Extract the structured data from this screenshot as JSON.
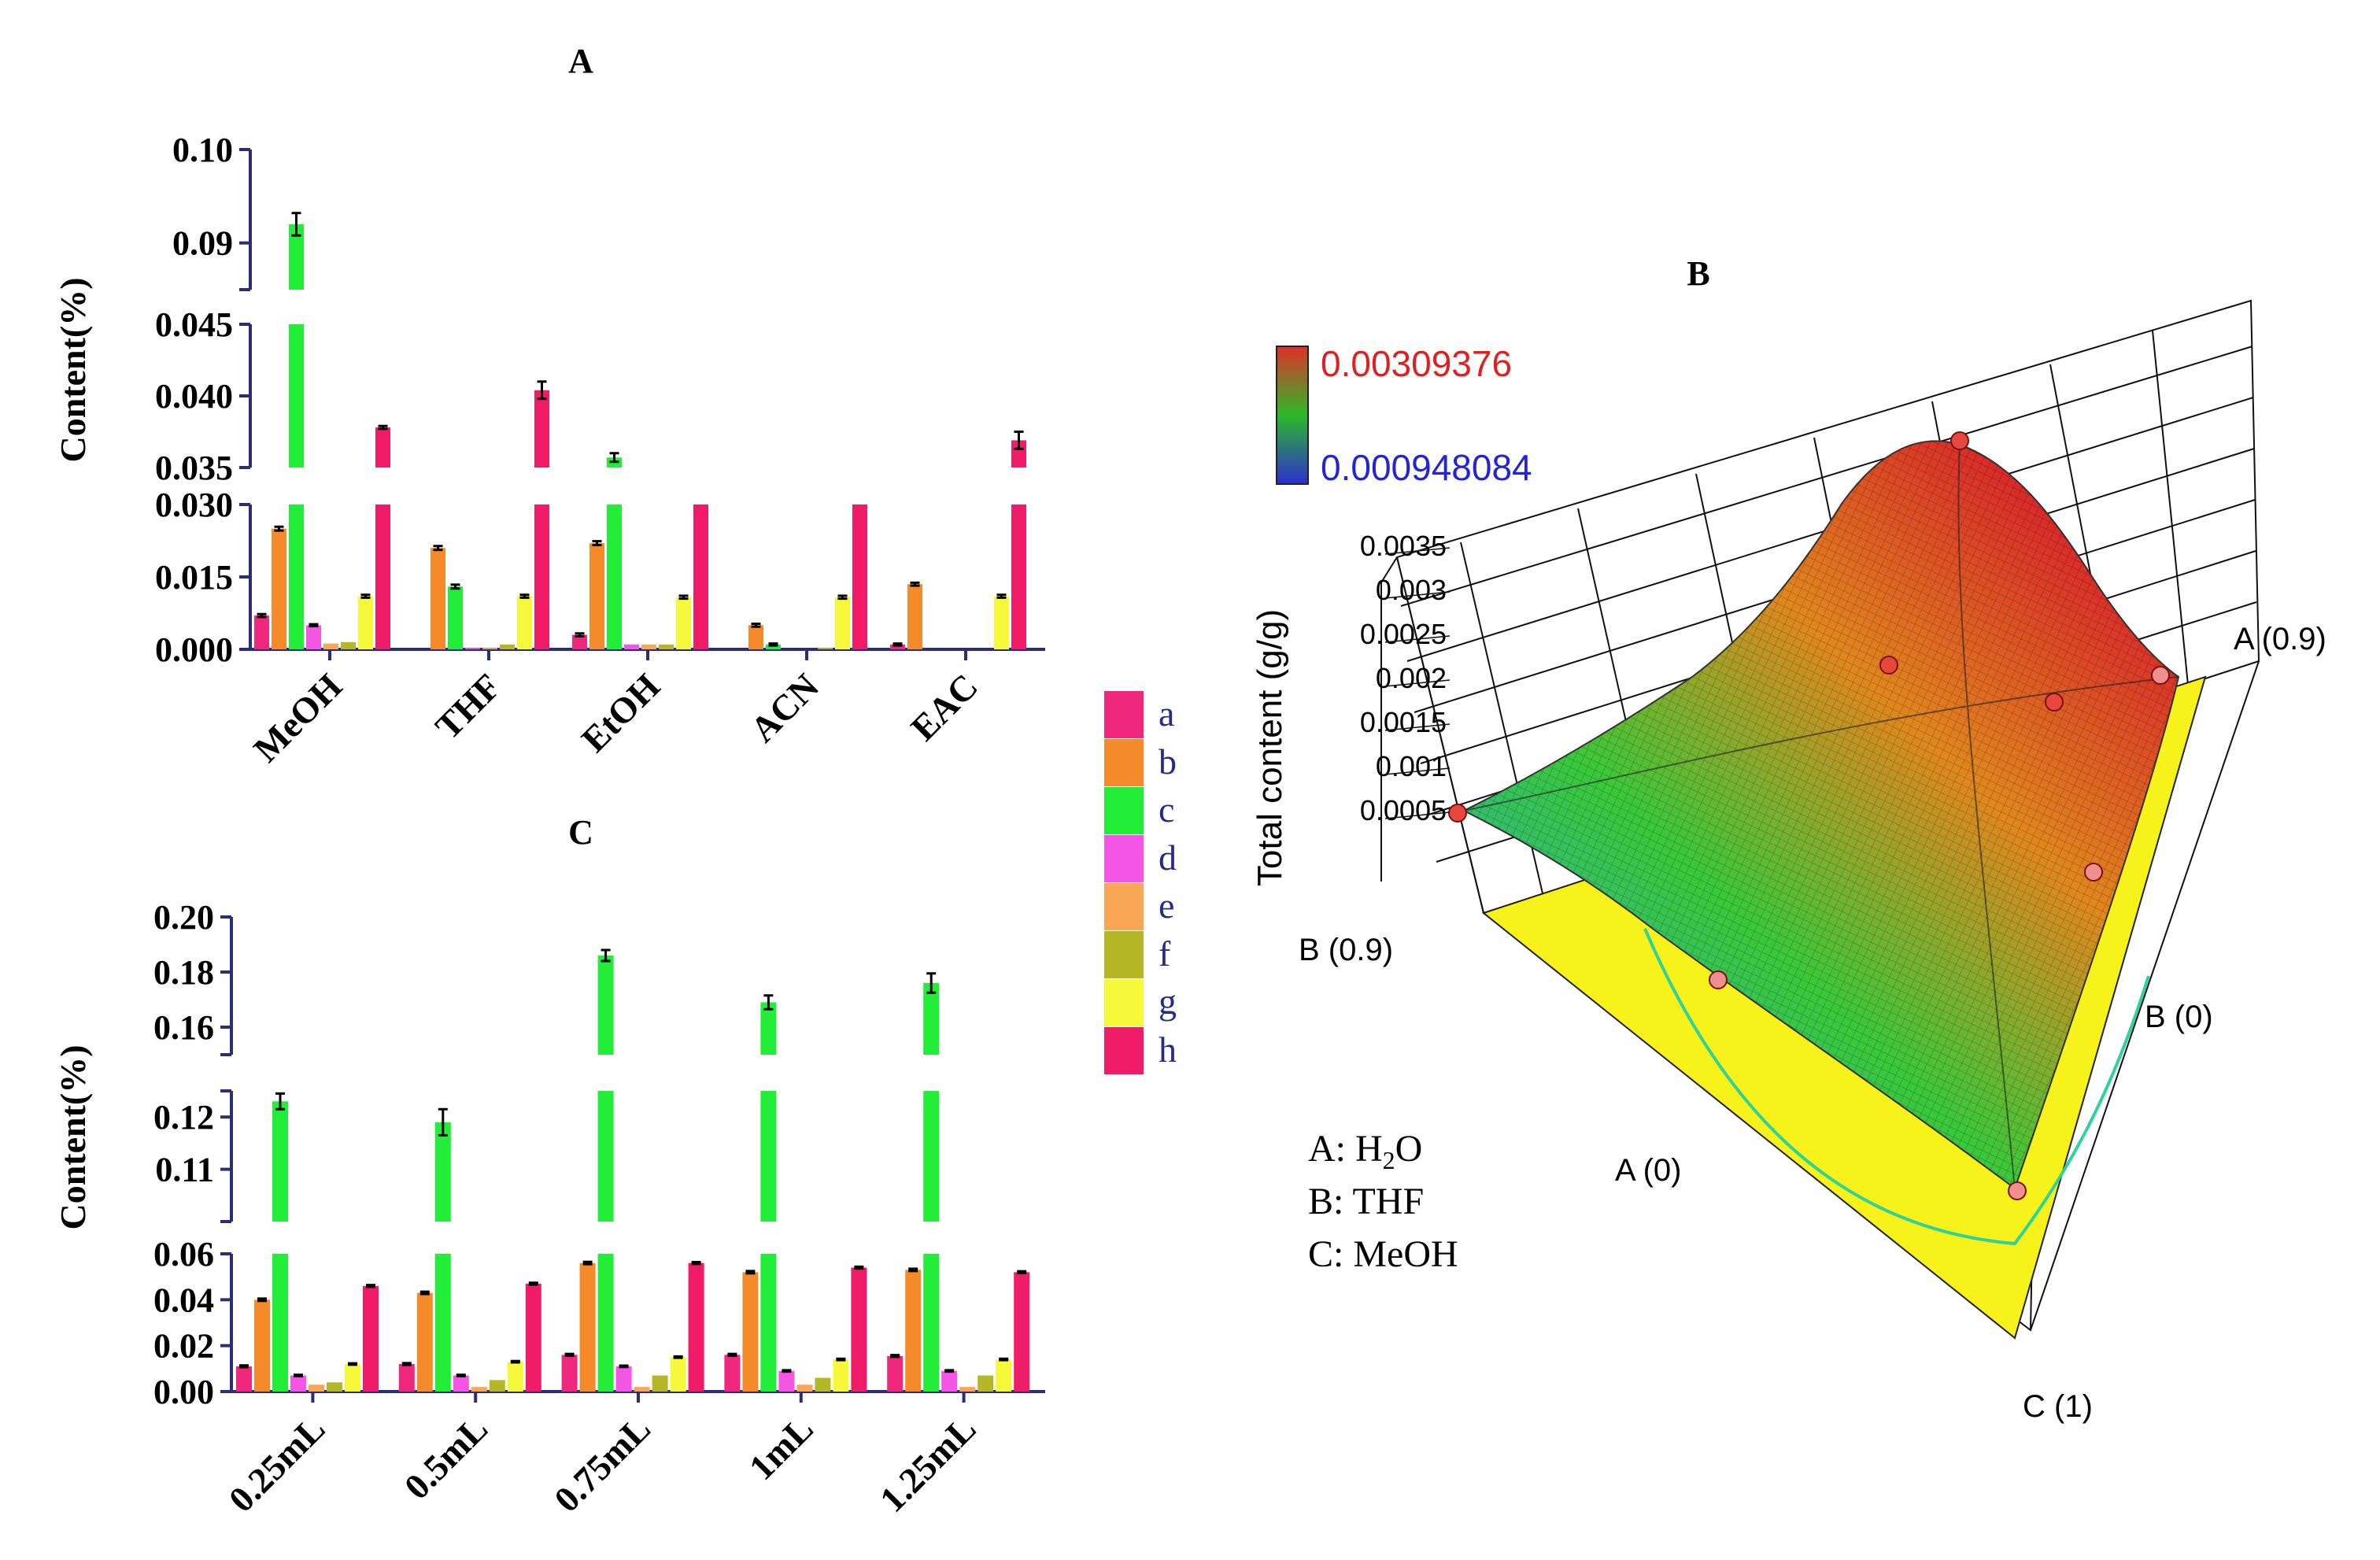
{
  "chart_data": [
    {
      "panel": "A",
      "type": "bar",
      "title": "A",
      "ylabel": "Content(%)",
      "xlabel": "",
      "categories": [
        "MeOH",
        "THF",
        "EtOH",
        "ACN",
        "EAC"
      ],
      "y_segments": [
        {
          "range": [
            0.0,
            0.03
          ],
          "ticks": [
            "0.000",
            "0.015",
            "0.030"
          ],
          "tick_values": [
            0.0,
            0.015,
            0.03
          ]
        },
        {
          "range": [
            0.035,
            0.045
          ],
          "ticks": [
            "0.035",
            "0.040",
            "0.045"
          ],
          "tick_values": [
            0.035,
            0.04,
            0.045
          ]
        },
        {
          "range": [
            0.085,
            0.1
          ],
          "ticks": [
            "0.09",
            "0.10"
          ],
          "tick_values": [
            0.09,
            0.1
          ]
        }
      ],
      "series": [
        {
          "name": "a",
          "values": [
            0.007,
            0.0,
            0.003,
            0.0,
            0.001
          ],
          "errors": [
            0.0003,
            0.0,
            0.0003,
            0.0,
            0.0002
          ]
        },
        {
          "name": "b",
          "values": [
            0.025,
            0.021,
            0.022,
            0.005,
            0.0135
          ],
          "errors": [
            0.0004,
            0.0004,
            0.0004,
            0.0003,
            0.0003
          ]
        },
        {
          "name": "c",
          "values": [
            0.092,
            0.013,
            0.0357,
            0.001,
            0.0
          ],
          "errors": [
            0.0012,
            0.0004,
            0.0003,
            0.0002,
            0.0
          ]
        },
        {
          "name": "d",
          "values": [
            0.005,
            0.0003,
            0.001,
            0.0,
            0.0
          ],
          "errors": [
            0.0002,
            0.0,
            0.0,
            0.0,
            0.0
          ]
        },
        {
          "name": "e",
          "values": [
            0.0012,
            0.0003,
            0.001,
            0.0,
            0.0
          ],
          "errors": [
            0.0,
            0.0,
            0.0,
            0.0,
            0.0
          ]
        },
        {
          "name": "f",
          "values": [
            0.0015,
            0.001,
            0.001,
            0.0003,
            0.0
          ],
          "errors": [
            0.0,
            0.0,
            0.0,
            0.0,
            0.0
          ]
        },
        {
          "name": "g",
          "values": [
            0.011,
            0.011,
            0.0108,
            0.0108,
            0.011
          ],
          "errors": [
            0.0003,
            0.0003,
            0.0003,
            0.0003,
            0.0003
          ]
        },
        {
          "name": "h",
          "values": [
            0.0378,
            0.0404,
            0.03,
            0.03,
            0.0369
          ],
          "errors": [
            0.0001,
            0.0006,
            0.0,
            0.0,
            0.0006
          ]
        }
      ]
    },
    {
      "panel": "C",
      "type": "bar",
      "title": "C",
      "ylabel": "Content(%)",
      "xlabel": "",
      "categories": [
        "0.25mL",
        "0.5mL",
        "0.75mL",
        "1mL",
        "1.25mL"
      ],
      "y_segments": [
        {
          "range": [
            0.0,
            0.06
          ],
          "ticks": [
            "0.00",
            "0.02",
            "0.04",
            "0.06"
          ],
          "tick_values": [
            0.0,
            0.02,
            0.04,
            0.06
          ]
        },
        {
          "range": [
            0.1,
            0.125
          ],
          "ticks": [
            "0.11",
            "0.12"
          ],
          "tick_values": [
            0.11,
            0.12
          ]
        },
        {
          "range": [
            0.15,
            0.2
          ],
          "ticks": [
            "0.16",
            "0.18",
            "0.20"
          ],
          "tick_values": [
            0.16,
            0.18,
            0.2
          ]
        }
      ],
      "series": [
        {
          "name": "a",
          "values": [
            0.011,
            0.012,
            0.016,
            0.016,
            0.0155
          ],
          "errors": [
            0.0004,
            0.0004,
            0.0004,
            0.0004,
            0.0004
          ]
        },
        {
          "name": "b",
          "values": [
            0.04,
            0.043,
            0.056,
            0.052,
            0.053
          ],
          "errors": [
            0.0005,
            0.0005,
            0.0005,
            0.0005,
            0.0005
          ]
        },
        {
          "name": "c",
          "values": [
            0.123,
            0.119,
            0.186,
            0.169,
            0.176
          ],
          "errors": [
            0.0015,
            0.0025,
            0.002,
            0.0025,
            0.0035
          ]
        },
        {
          "name": "d",
          "values": [
            0.007,
            0.007,
            0.011,
            0.009,
            0.009
          ],
          "errors": [
            0.0003,
            0.0003,
            0.0003,
            0.0003,
            0.0003
          ]
        },
        {
          "name": "e",
          "values": [
            0.003,
            0.002,
            0.002,
            0.003,
            0.002
          ],
          "errors": [
            0.0,
            0.0,
            0.0,
            0.0,
            0.0
          ]
        },
        {
          "name": "f",
          "values": [
            0.004,
            0.005,
            0.007,
            0.006,
            0.007
          ],
          "errors": [
            0.0,
            0.0,
            0.0,
            0.0,
            0.0
          ]
        },
        {
          "name": "g",
          "values": [
            0.012,
            0.013,
            0.015,
            0.014,
            0.014
          ],
          "errors": [
            0.0003,
            0.0003,
            0.0003,
            0.0003,
            0.0003
          ]
        },
        {
          "name": "h",
          "values": [
            0.046,
            0.047,
            0.056,
            0.054,
            0.052
          ],
          "errors": [
            0.0004,
            0.0004,
            0.0004,
            0.0004,
            0.0004
          ]
        }
      ]
    },
    {
      "panel": "B",
      "type": "surface3d",
      "title": "B",
      "zlabel": "Total content (g/g)",
      "z_ticks": [
        "0.0035",
        "0.003",
        "0.0025",
        "0.002",
        "0.0015",
        "0.001",
        "0.0005"
      ],
      "z_tick_values": [
        0.0035,
        0.003,
        0.0025,
        0.002,
        0.0015,
        0.001,
        0.0005
      ],
      "colorbar": {
        "max_label": "0.00309376",
        "min_label": "0.000948084",
        "max": 0.00309376,
        "min": 0.000948084
      },
      "vertex_labels": [
        "A (0.9)",
        "B (0.9)",
        "B (0)",
        "A (0)",
        "C (1)"
      ],
      "components": [
        "A: H2O",
        "B: THF",
        "C: MeOH"
      ],
      "design_points": [
        {
          "A": 0.0,
          "B": 0.5,
          "C": 0.5,
          "z": 0.00309
        },
        {
          "A": 0.1,
          "B": 0.45,
          "C": 0.45,
          "z": 0.00251
        },
        {
          "A": 0.0,
          "B": 0.3,
          "C": 0.7,
          "z": 0.00243
        },
        {
          "A": 0.9,
          "B": 0.0,
          "C": 0.1,
          "z": 0.00232
        },
        {
          "A": 0.0,
          "B": 0.9,
          "C": 0.1,
          "z": 0.00095
        },
        {
          "A": 0.0,
          "B": 0.0,
          "C": 1.0,
          "z": 0.0012
        }
      ]
    }
  ],
  "legend": {
    "items": [
      {
        "label": "a",
        "color": "#f0287d"
      },
      {
        "label": "b",
        "color": "#f58a2a"
      },
      {
        "label": "c",
        "color": "#22ee3a"
      },
      {
        "label": "d",
        "color": "#f455e4"
      },
      {
        "label": "e",
        "color": "#f9a655"
      },
      {
        "label": "f",
        "color": "#b5b727"
      },
      {
        "label": "g",
        "color": "#f6f93a"
      },
      {
        "label": "h",
        "color": "#f11c67"
      }
    ]
  },
  "component_lines": [
    {
      "prefix": "A: H",
      "sub": "2",
      "suffix": "O"
    },
    {
      "prefix": "B: THF",
      "sub": "",
      "suffix": ""
    },
    {
      "prefix": "C: MeOH",
      "sub": "",
      "suffix": ""
    }
  ]
}
